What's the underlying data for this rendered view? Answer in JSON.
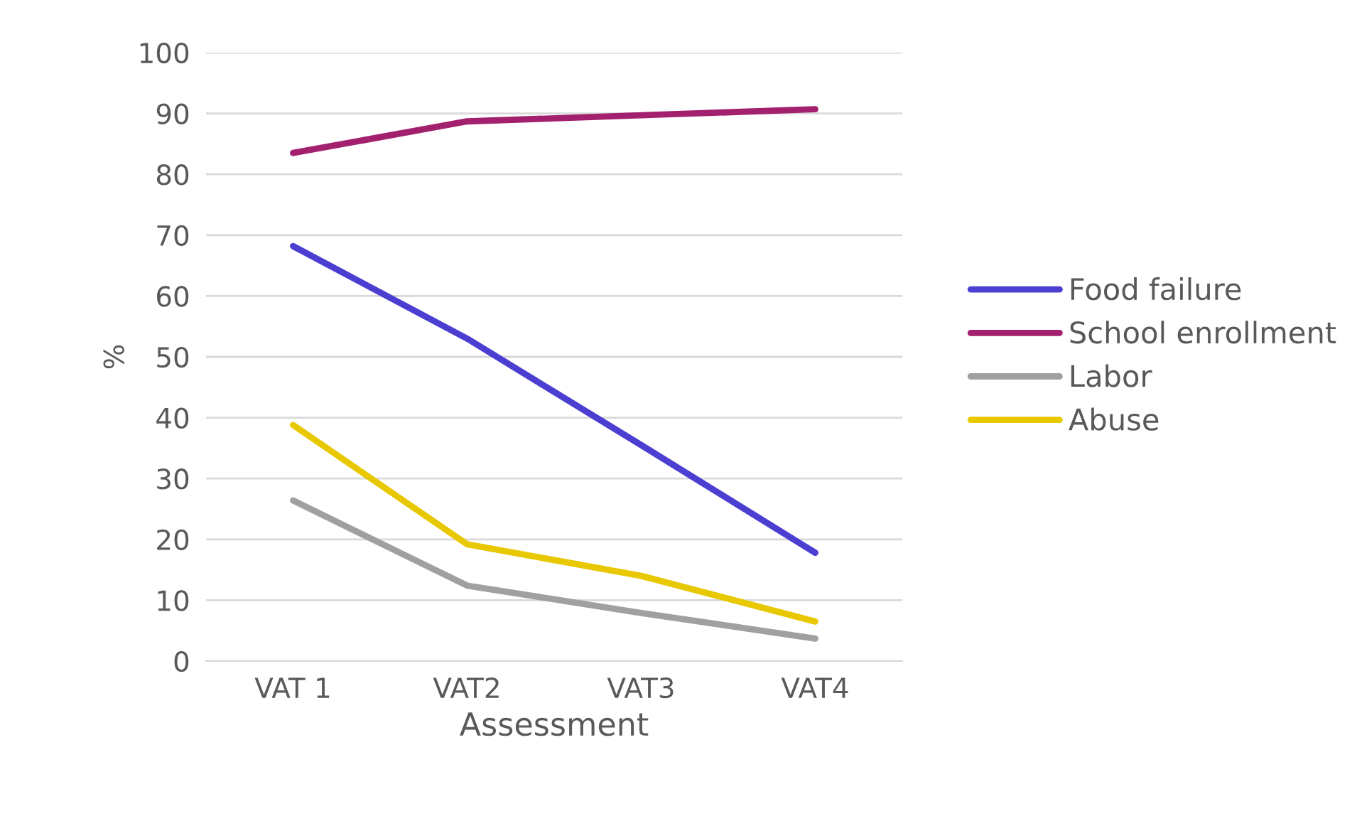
{
  "chart_data": {
    "type": "line",
    "xlabel": "Assessment",
    "ylabel": "%",
    "categories": [
      "VAT 1",
      "VAT2",
      "VAT3",
      "VAT4"
    ],
    "series": [
      {
        "name": "Food failure",
        "color": "#4b3fd1",
        "values": [
          68.2,
          53,
          35.5,
          17.8
        ]
      },
      {
        "name": "School enrollment",
        "color": "#a3206e",
        "values": [
          83.5,
          88.7,
          89.7,
          90.7
        ]
      },
      {
        "name": "Labor",
        "color": "#a0a0a0",
        "values": [
          26.4,
          12.4,
          7.9,
          3.7
        ]
      },
      {
        "name": "Abuse",
        "color": "#e8c800",
        "values": [
          38.8,
          19.2,
          14,
          6.5
        ]
      }
    ],
    "ylim": [
      0,
      100
    ],
    "yticks": [
      0,
      10,
      20,
      30,
      40,
      50,
      60,
      70,
      80,
      90,
      100
    ],
    "grid": "y",
    "legend": "right",
    "marker": "none",
    "line_style": "solid"
  }
}
